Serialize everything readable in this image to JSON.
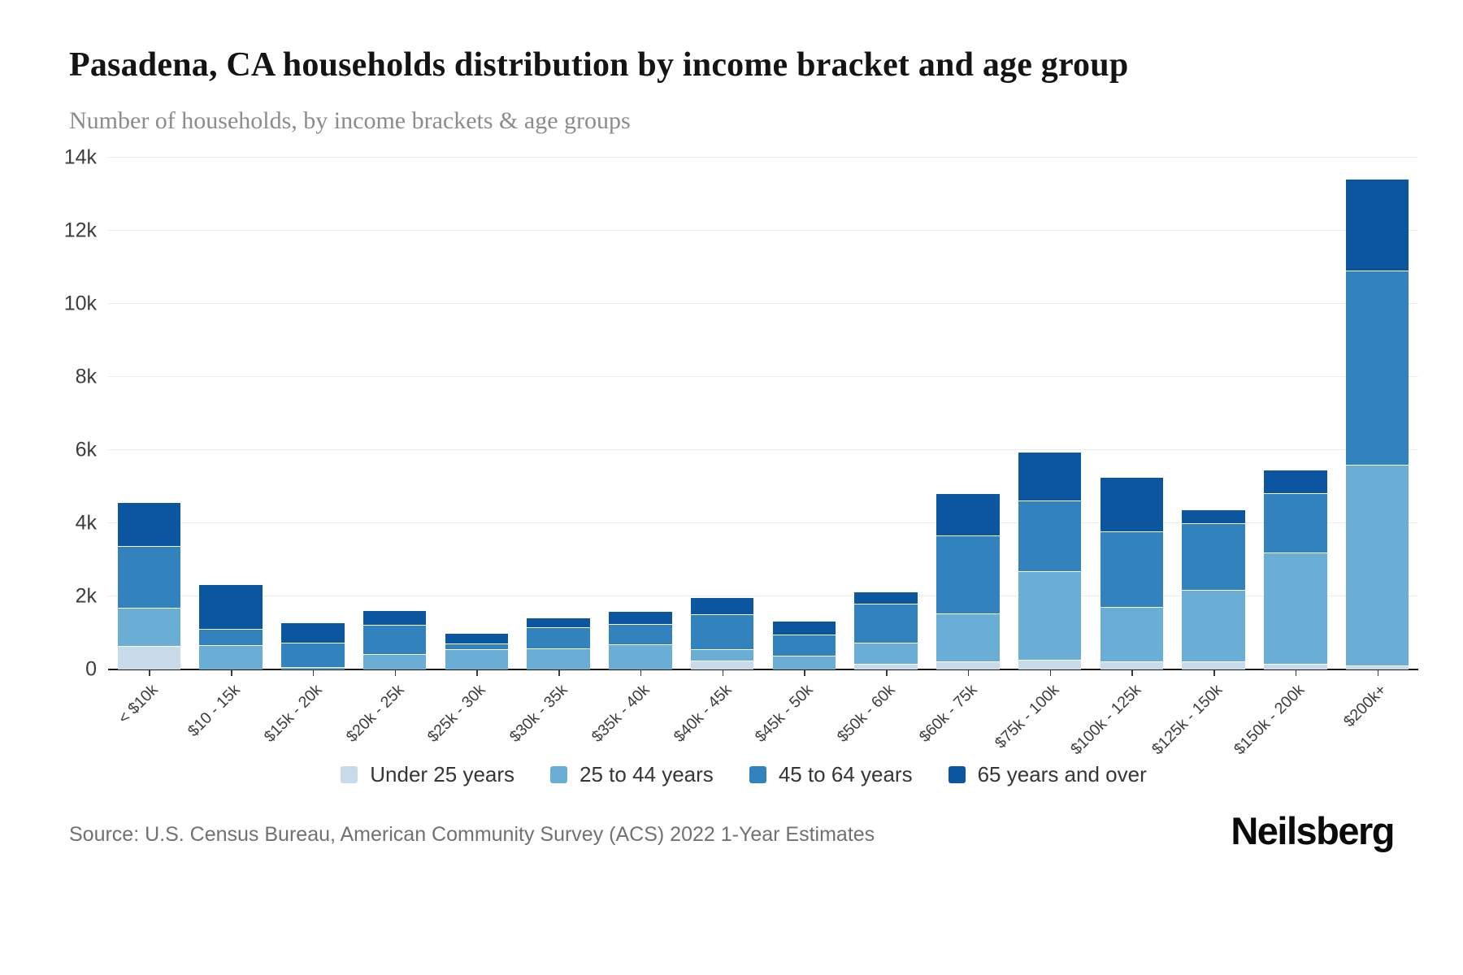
{
  "header": {
    "title": "Pasadena, CA households distribution by income bracket and age group",
    "subtitle": "Number of households, by income brackets & age groups"
  },
  "chart_data": {
    "type": "bar",
    "stacked": true,
    "title": "Pasadena, CA households distribution by income bracket and age group",
    "subtitle": "Number of households, by income brackets & age groups",
    "xlabel": "",
    "ylabel": "",
    "grid": true,
    "legend_position": "bottom",
    "y_axis": {
      "min": 0,
      "max": 14000,
      "tick_step": 2000,
      "tick_labels": [
        "0",
        "2k",
        "4k",
        "6k",
        "8k",
        "10k",
        "12k",
        "14k"
      ]
    },
    "categories": [
      "< $10k",
      "$10 - 15k",
      "$15k - 20k",
      "$20k - 25k",
      "$25k - 30k",
      "$30k - 35k",
      "$35k - 40k",
      "$40k - 45k",
      "$45k - 50k",
      "$50k - 60k",
      "$60k - 75k",
      "$75k - 100k",
      "$100k - 125k",
      "$125k - 150k",
      "$150k - 200k",
      "$200k+"
    ],
    "series": [
      {
        "name": "Under 25 years",
        "color": "#c7dbeb",
        "values": [
          650,
          0,
          0,
          0,
          0,
          0,
          0,
          250,
          0,
          150,
          220,
          260,
          220,
          220,
          150,
          100
        ]
      },
      {
        "name": "25 to 44 years",
        "color": "#6aaed6",
        "values": [
          1030,
          660,
          60,
          430,
          550,
          580,
          690,
          310,
          370,
          580,
          1310,
          2430,
          1500,
          1950,
          3060,
          5500
        ]
      },
      {
        "name": "45 to 64 years",
        "color": "#3182bd",
        "values": [
          1700,
          450,
          680,
          790,
          150,
          580,
          560,
          960,
          580,
          1080,
          2130,
          1940,
          2050,
          1830,
          1610,
          5300
        ]
      },
      {
        "name": "65 years and over",
        "color": "#0b569f",
        "values": [
          1180,
          1190,
          520,
          380,
          280,
          240,
          320,
          430,
          360,
          300,
          1140,
          1310,
          1480,
          360,
          620,
          2500
        ]
      }
    ]
  },
  "footer": {
    "source": "Source: U.S. Census Bureau, American Community Survey (ACS) 2022 1-Year Estimates",
    "brand": "Neilsberg"
  }
}
